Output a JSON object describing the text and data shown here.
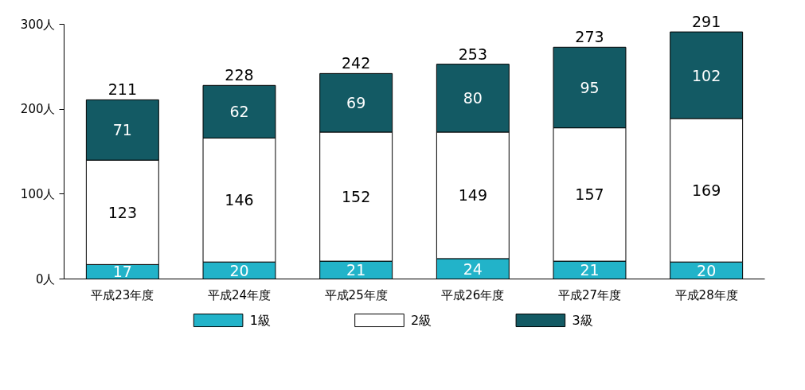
{
  "chart_data": {
    "type": "bar",
    "stacked": true,
    "categories": [
      "平成23年度",
      "平成24年度",
      "平成25年度",
      "平成26年度",
      "平成27年度",
      "平成28年度"
    ],
    "series": [
      {
        "name": "1級",
        "color": "#22b3c9",
        "values": [
          17,
          20,
          21,
          24,
          21,
          20
        ]
      },
      {
        "name": "2級",
        "color": "#ffffff",
        "values": [
          123,
          146,
          152,
          149,
          157,
          169
        ]
      },
      {
        "name": "3級",
        "color": "#135a64",
        "values": [
          71,
          62,
          69,
          80,
          95,
          102
        ]
      }
    ],
    "ylim": [
      0,
      300
    ],
    "yticks": [
      {
        "value": 0,
        "label": "0人"
      },
      {
        "value": 100,
        "label": "100人"
      },
      {
        "value": 200,
        "label": "200人"
      },
      {
        "value": 300,
        "label": "300人"
      }
    ],
    "data_labels": true,
    "totals": [
      "211",
      "228",
      "242",
      "253",
      "273",
      "291"
    ],
    "grid": false,
    "legend": "bottom"
  }
}
